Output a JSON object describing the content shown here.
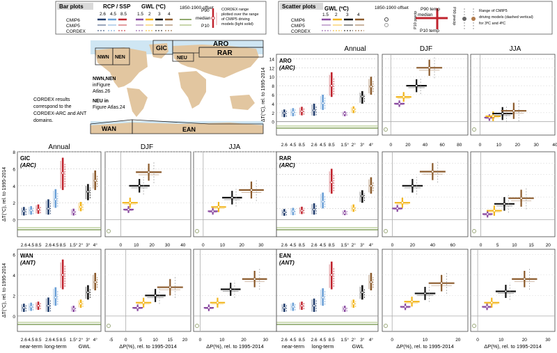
{
  "legend": {
    "bar": {
      "title": "Bar plots",
      "rcp_head": "RCP / SSP",
      "rcp_vals": [
        "2.6",
        "4.5",
        "8.5"
      ],
      "gwl_head": "GWL (ºC)",
      "gwl_vals": [
        "1.5",
        "2",
        "3",
        "4"
      ],
      "offset_label": "1850-1900 offset",
      "rows": [
        "CMIP6",
        "CMIP5",
        "CORDEX"
      ],
      "p90": "P90",
      "median": "median",
      "p10": "P10",
      "cordex_note": [
        "CORDEX range",
        "plotted over the range",
        "of CMIP5 driving",
        "models (light solid)"
      ]
    },
    "scatter": {
      "title": "Scatter plots",
      "gwl_head": "GWL (ºC)",
      "gwl_vals": [
        "1.5",
        "2",
        "3",
        "4"
      ],
      "offset_label": "1850-1900 offset",
      "rows": [
        "CMIP6",
        "CMIP5",
        "CORDEX"
      ],
      "p90_temp": "P90 temp",
      "p10_temp": "P10 temp",
      "median": "median",
      "p10_precip": "P10 precip",
      "p90_precip": "P90 precip",
      "cmip5_note": [
        "Range of CMIP5",
        "driving models (dashed vertical)",
        "for 3ºC and 4ºC"
      ]
    }
  },
  "map": {
    "labels": [
      "ARO",
      "RAR",
      "GIC",
      "NWN",
      "NEN",
      "NEU",
      "WAN",
      "EAN"
    ],
    "note_nwn": [
      "NWN,NEN",
      "inFigure",
      "Atlas.26"
    ],
    "note_neu": [
      "NEU in",
      "Figure Atlas.24"
    ]
  },
  "cordex_note": [
    "CORDEX results",
    "correspond to the",
    "CORDEX-ARC and ANT",
    "domains."
  ],
  "col_titles": [
    "Annual",
    "DJF",
    "JJA"
  ],
  "y_label": "ΔT(°C), rel. to 1995-2014",
  "x_label_precip": "ΔP(%), rel. to 1995-2014",
  "bar_tick_labels": [
    "2.6",
    "4.5",
    "8.5",
    "2.6",
    "4.5",
    "8.5",
    "1.5°",
    "2°",
    "3°",
    "4°"
  ],
  "bar_groups": [
    "near-term",
    "long-term",
    "GWL"
  ],
  "colors": {
    "rcp26": "#1f3b6b",
    "rcp45": "#6a9fd6",
    "rcp85": "#c0232d",
    "gwl15": "#8a4aa0",
    "gwl2": "#f2b51c",
    "gwl3": "#111111",
    "gwl4": "#8b5a2b",
    "cordex": "#6b8e3e",
    "map_land": "#e2c6a0"
  },
  "chart_data": [
    {
      "type": "bar",
      "region": "ARO",
      "subtitle": "(ARC)",
      "series": [
        {
          "name": "2.6 near-term",
          "values": [
            1.0,
            1.9,
            2.7
          ]
        },
        {
          "name": "4.5 near-term",
          "values": [
            1.2,
            2.1,
            3.0
          ]
        },
        {
          "name": "8.5 near-term",
          "values": [
            1.4,
            2.3,
            3.3
          ]
        },
        {
          "name": "2.6 long-term",
          "values": [
            1.3,
            2.5,
            4.0
          ]
        },
        {
          "name": "4.5 long-term",
          "values": [
            2.6,
            4.1,
            6.0
          ]
        },
        {
          "name": "8.5 long-term",
          "values": [
            5.5,
            8.0,
            11.0
          ]
        },
        {
          "name": "1.5°",
          "values": [
            1.2,
            1.8,
            2.3
          ]
        },
        {
          "name": "2°",
          "values": [
            1.9,
            2.7,
            3.4
          ]
        },
        {
          "name": "3°",
          "values": [
            4.0,
            5.6,
            6.8
          ]
        },
        {
          "name": "4°",
          "values": [
            6.0,
            7.8,
            10.0
          ]
        }
      ],
      "ylim": [
        -3,
        15
      ],
      "yticks": [
        0,
        2,
        4,
        6,
        8,
        10,
        12,
        14
      ]
    },
    {
      "type": "scatter",
      "region": "ARO",
      "season": "DJF",
      "points": [
        {
          "gwl": "1.5°",
          "dp": 10,
          "dt": 4
        },
        {
          "gwl": "2°",
          "dp": 15,
          "dt": 5.5
        },
        {
          "gwl": "3°",
          "dp": 30,
          "dt": 8
        },
        {
          "gwl": "4°",
          "dp": 45,
          "dt": 12
        }
      ],
      "xlim": [
        -10,
        90
      ],
      "xticks": [
        0,
        20,
        40,
        60,
        80
      ],
      "ylim": [
        -3,
        15
      ]
    },
    {
      "type": "scatter",
      "region": "ARO",
      "season": "JJA",
      "points": [
        {
          "gwl": "1.5°",
          "dp": 5,
          "dt": 0.9
        },
        {
          "gwl": "2°",
          "dp": 7,
          "dt": 1.2
        },
        {
          "gwl": "3°",
          "dp": 12,
          "dt": 1.8
        },
        {
          "gwl": "4°",
          "dp": 18,
          "dt": 2.4
        }
      ],
      "xlim": [
        -5,
        40
      ],
      "xticks": [
        0,
        10,
        20,
        30,
        40
      ],
      "ylim": [
        -3,
        15
      ]
    },
    {
      "type": "bar",
      "region": "GIC",
      "subtitle": "(ARC)",
      "series": [
        {
          "name": "2.6 near-term",
          "values": [
            0.5,
            1.0,
            1.5
          ]
        },
        {
          "name": "4.5 near-term",
          "values": [
            0.6,
            1.1,
            1.6
          ]
        },
        {
          "name": "8.5 near-term",
          "values": [
            0.7,
            1.2,
            1.8
          ]
        },
        {
          "name": "2.6 long-term",
          "values": [
            0.6,
            1.3,
            2.4
          ]
        },
        {
          "name": "4.5 long-term",
          "values": [
            1.4,
            2.4,
            3.6
          ]
        },
        {
          "name": "8.5 long-term",
          "values": [
            3.5,
            5.5,
            7.3
          ]
        },
        {
          "name": "1.5°",
          "values": [
            0.5,
            0.9,
            1.3
          ]
        },
        {
          "name": "2°",
          "values": [
            1.0,
            1.5,
            2.1
          ]
        },
        {
          "name": "3°",
          "values": [
            2.3,
            3.3,
            4.2
          ]
        },
        {
          "name": "4°",
          "values": [
            3.5,
            4.6,
            5.8
          ]
        }
      ],
      "ylim": [
        -2,
        8
      ],
      "yticks": [
        0,
        2,
        4,
        6,
        8
      ]
    },
    {
      "type": "scatter",
      "region": "GIC",
      "season": "DJF",
      "points": [
        {
          "gwl": "1.5°",
          "dp": 5,
          "dt": 1.2
        },
        {
          "gwl": "2°",
          "dp": 6,
          "dt": 2
        },
        {
          "gwl": "3°",
          "dp": 12,
          "dt": 4
        },
        {
          "gwl": "4°",
          "dp": 18,
          "dt": 5.6
        }
      ],
      "xlim": [
        -10,
        45
      ],
      "xticks": [
        0,
        10,
        20,
        30,
        40
      ],
      "ylim": [
        -2,
        8
      ]
    },
    {
      "type": "scatter",
      "region": "GIC",
      "season": "JJA",
      "points": [
        {
          "gwl": "1.5°",
          "dp": 5,
          "dt": 1
        },
        {
          "gwl": "2°",
          "dp": 8,
          "dt": 1.5
        },
        {
          "gwl": "3°",
          "dp": 15,
          "dt": 2.6
        },
        {
          "gwl": "4°",
          "dp": 25,
          "dt": 3.5
        }
      ],
      "xlim": [
        -5,
        38
      ],
      "xticks": [
        0,
        10,
        20,
        30
      ],
      "ylim": [
        -2,
        8
      ]
    },
    {
      "type": "bar",
      "region": "RAR",
      "subtitle": "(ARC)",
      "series": [
        {
          "name": "2.6 near-term",
          "values": [
            0.7,
            1.3,
            1.9
          ]
        },
        {
          "name": "4.5 near-term",
          "values": [
            0.8,
            1.5,
            2.1
          ]
        },
        {
          "name": "8.5 near-term",
          "values": [
            1.0,
            1.6,
            2.3
          ]
        },
        {
          "name": "2.6 long-term",
          "values": [
            0.9,
            1.8,
            2.9
          ]
        },
        {
          "name": "4.5 long-term",
          "values": [
            2.0,
            3.2,
            4.8
          ]
        },
        {
          "name": "8.5 long-term",
          "values": [
            4.6,
            6.6,
            9.0
          ]
        },
        {
          "name": "1.5°",
          "values": [
            0.8,
            1.2,
            1.7
          ]
        },
        {
          "name": "2°",
          "values": [
            1.4,
            2.0,
            2.7
          ]
        },
        {
          "name": "3°",
          "values": [
            3.0,
            4.2,
            5.2
          ]
        },
        {
          "name": "4°",
          "values": [
            4.6,
            6.0,
            7.5
          ]
        }
      ],
      "ylim": [
        -3,
        12
      ],
      "yticks": [
        0,
        2,
        4,
        6,
        8,
        10
      ]
    },
    {
      "type": "scatter",
      "region": "RAR",
      "season": "DJF",
      "points": [
        {
          "gwl": "1.5°",
          "dp": 5,
          "dt": 2
        },
        {
          "gwl": "2°",
          "dp": 10,
          "dt": 3
        },
        {
          "gwl": "3°",
          "dp": 20,
          "dt": 6
        },
        {
          "gwl": "4°",
          "dp": 40,
          "dt": 8.5
        }
      ],
      "xlim": [
        -10,
        75
      ],
      "xticks": [
        0,
        20,
        40,
        60
      ],
      "ylim": [
        -3,
        12
      ]
    },
    {
      "type": "scatter",
      "region": "RAR",
      "season": "JJA",
      "points": [
        {
          "gwl": "1.5°",
          "dp": 2,
          "dt": 1
        },
        {
          "gwl": "2°",
          "dp": 4,
          "dt": 1.6
        },
        {
          "gwl": "3°",
          "dp": 7,
          "dt": 2.8
        },
        {
          "gwl": "4°",
          "dp": 12,
          "dt": 3.8
        }
      ],
      "xlim": [
        -3,
        22
      ],
      "xticks": [
        0,
        5,
        10,
        15,
        20
      ],
      "ylim": [
        -3,
        12
      ]
    },
    {
      "type": "bar",
      "region": "WAN",
      "subtitle": "(ANT)",
      "series": [
        {
          "name": "2.6 near-term",
          "values": [
            0.4,
            0.8,
            1.2
          ]
        },
        {
          "name": "4.5 near-term",
          "values": [
            0.5,
            0.9,
            1.3
          ]
        },
        {
          "name": "8.5 near-term",
          "values": [
            0.6,
            1.0,
            1.4
          ]
        },
        {
          "name": "2.6 long-term",
          "values": [
            0.4,
            1.0,
            1.8
          ]
        },
        {
          "name": "4.5 long-term",
          "values": [
            1.0,
            1.8,
            2.8
          ]
        },
        {
          "name": "8.5 long-term",
          "values": [
            2.6,
            4.0,
            5.5
          ]
        },
        {
          "name": "1.5°",
          "values": [
            0.4,
            0.7,
            1.0
          ]
        },
        {
          "name": "2°",
          "values": [
            0.8,
            1.2,
            1.6
          ]
        },
        {
          "name": "3°",
          "values": [
            1.6,
            2.3,
            3.0
          ]
        },
        {
          "name": "4°",
          "values": [
            2.5,
            3.3,
            4.2
          ]
        }
      ],
      "ylim": [
        -1.5,
        6.5
      ],
      "yticks": [
        0,
        2,
        4,
        6
      ]
    },
    {
      "type": "scatter",
      "region": "WAN",
      "season": "DJF",
      "points": [
        {
          "gwl": "1.5°",
          "dp": 4,
          "dt": 0.8
        },
        {
          "gwl": "2°",
          "dp": 6,
          "dt": 1.3
        },
        {
          "gwl": "3°",
          "dp": 10,
          "dt": 2
        },
        {
          "gwl": "4°",
          "dp": 15,
          "dt": 2.8
        }
      ],
      "xlim": [
        -7,
        22
      ],
      "xticks": [
        -5,
        0,
        5,
        10,
        15,
        20
      ],
      "ylim": [
        -1.5,
        6.5
      ]
    },
    {
      "type": "scatter",
      "region": "WAN",
      "season": "JJA",
      "points": [
        {
          "gwl": "1.5°",
          "dp": 4,
          "dt": 0.8
        },
        {
          "gwl": "2°",
          "dp": 8,
          "dt": 1.3
        },
        {
          "gwl": "3°",
          "dp": 14,
          "dt": 2.6
        },
        {
          "gwl": "4°",
          "dp": 25,
          "dt": 3.6
        }
      ],
      "xlim": [
        -3,
        35
      ],
      "xticks": [
        0,
        10,
        20,
        30
      ],
      "ylim": [
        -1.5,
        6.5
      ]
    },
    {
      "type": "bar",
      "region": "EAN",
      "subtitle": "(ANT)",
      "series": [
        {
          "name": "2.6 near-term",
          "values": [
            0.4,
            0.8,
            1.2
          ]
        },
        {
          "name": "4.5 near-term",
          "values": [
            0.5,
            0.9,
            1.3
          ]
        },
        {
          "name": "8.5 near-term",
          "values": [
            0.6,
            1.0,
            1.4
          ]
        },
        {
          "name": "2.6 long-term",
          "values": [
            0.4,
            1.0,
            1.7
          ]
        },
        {
          "name": "4.5 long-term",
          "values": [
            1.0,
            1.8,
            2.7
          ]
        },
        {
          "name": "8.5 long-term",
          "values": [
            2.6,
            4.0,
            5.3
          ]
        },
        {
          "name": "1.5°",
          "values": [
            0.4,
            0.7,
            1.0
          ]
        },
        {
          "name": "2°",
          "values": [
            0.8,
            1.2,
            1.6
          ]
        },
        {
          "name": "3°",
          "values": [
            1.6,
            2.3,
            3.0
          ]
        },
        {
          "name": "4°",
          "values": [
            2.5,
            3.3,
            4.2
          ]
        }
      ],
      "ylim": [
        -1.5,
        6.5
      ],
      "yticks": [
        0,
        2,
        4,
        6
      ]
    },
    {
      "type": "scatter",
      "region": "EAN",
      "season": "DJF",
      "points": [
        {
          "gwl": "1.5°",
          "dp": 4,
          "dt": 0.9
        },
        {
          "gwl": "2°",
          "dp": 6,
          "dt": 1.4
        },
        {
          "gwl": "3°",
          "dp": 10,
          "dt": 2.2
        },
        {
          "gwl": "4°",
          "dp": 15,
          "dt": 3.2
        }
      ],
      "xlim": [
        -3,
        23
      ],
      "xticks": [
        0,
        10,
        20
      ],
      "ylim": [
        -1.5,
        6.5
      ]
    },
    {
      "type": "scatter",
      "region": "EAN",
      "season": "JJA",
      "points": [
        {
          "gwl": "1.5°",
          "dp": 4,
          "dt": 0.9
        },
        {
          "gwl": "2°",
          "dp": 6,
          "dt": 1.3
        },
        {
          "gwl": "3°",
          "dp": 12,
          "dt": 2.4
        },
        {
          "gwl": "4°",
          "dp": 20,
          "dt": 3.6
        }
      ],
      "xlim": [
        -3,
        33
      ],
      "xticks": [
        0,
        10,
        20,
        30
      ],
      "ylim": [
        -1.5,
        6.5
      ]
    }
  ]
}
